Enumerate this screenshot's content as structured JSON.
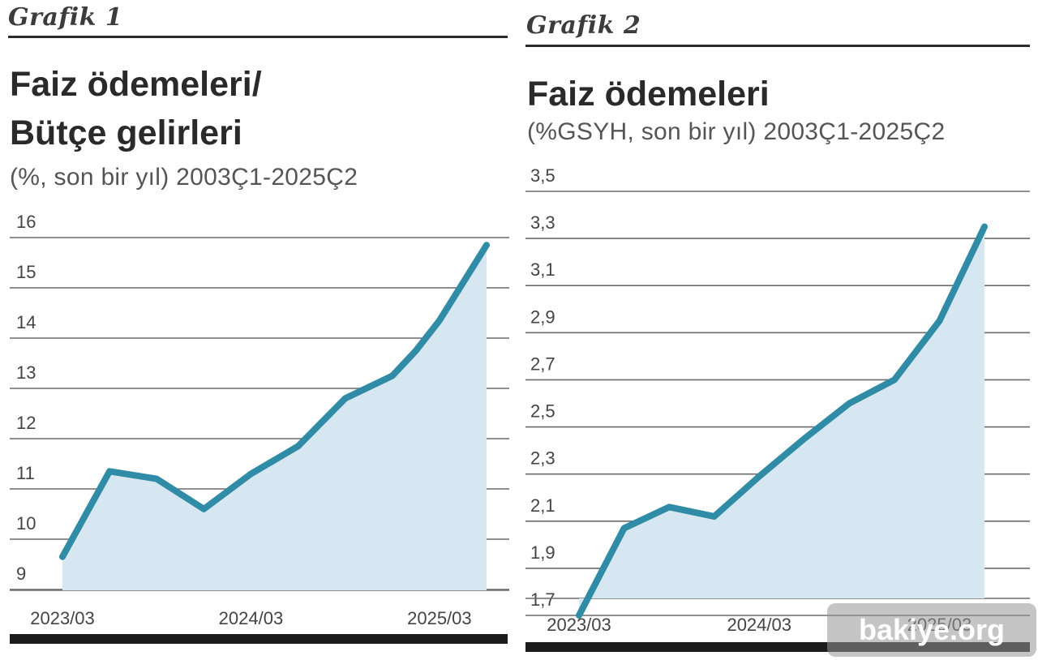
{
  "chart_data": [
    {
      "panel_label": "Grafik 1",
      "type": "area",
      "title": "Faiz ödemeleri/\nBütçe gelirleri",
      "subtitle": "(%, son bir yıl) 2003Ç1-2025Ç2",
      "xlabel": "",
      "ylabel": "",
      "ylim": [
        9,
        16
      ],
      "yticks": [
        "16",
        "15",
        "14",
        "13",
        "12",
        "11",
        "10",
        "9"
      ],
      "ytick_values": [
        16,
        15,
        14,
        13,
        12,
        11,
        10,
        9
      ],
      "xlim": [
        0,
        9
      ],
      "xtick_labels": [
        "2023/03",
        "2024/03",
        "2025/03"
      ],
      "xtick_positions": [
        0,
        4,
        8
      ],
      "grid": true,
      "legend": "none",
      "line_color": "#2f8ba6",
      "fill_color": "#d6e7f1",
      "series": [
        {
          "x": [
            0,
            1,
            2,
            3,
            4,
            5,
            6,
            7,
            7.5,
            8,
            9
          ],
          "values": [
            9.65,
            11.35,
            11.2,
            10.6,
            11.3,
            11.85,
            12.8,
            13.25,
            13.75,
            14.35,
            15.85
          ]
        }
      ]
    },
    {
      "panel_label": "Grafik 2",
      "type": "area",
      "title": "Faiz ödemeleri",
      "subtitle": "(%GSYH, son bir yıl) 2003Ç1-2025Ç2",
      "xlabel": "",
      "ylabel": "",
      "ylim": [
        1.6,
        3.5
      ],
      "yticks": [
        "3,5",
        "3,3",
        "3,1",
        "2,9",
        "2,7",
        "2,5",
        "2,3",
        "2,1",
        "1,9",
        "1,7"
      ],
      "ytick_values": [
        3.5,
        3.3,
        3.1,
        2.9,
        2.7,
        2.5,
        2.3,
        2.1,
        1.9,
        1.7
      ],
      "xlim": [
        0,
        9
      ],
      "xtick_labels": [
        "2023/03",
        "2024/03",
        "2025/03"
      ],
      "xtick_positions": [
        0,
        4,
        8
      ],
      "grid": true,
      "legend": "none",
      "line_color": "#2f8ba6",
      "fill_color": "#d6e7f1",
      "series": [
        {
          "x": [
            0,
            1,
            2,
            3,
            4,
            5,
            6,
            7,
            8,
            9
          ],
          "values": [
            1.7,
            2.07,
            2.16,
            2.12,
            2.29,
            2.45,
            2.6,
            2.7,
            2.95,
            3.35
          ]
        }
      ]
    }
  ],
  "watermark": "bakiye.org"
}
